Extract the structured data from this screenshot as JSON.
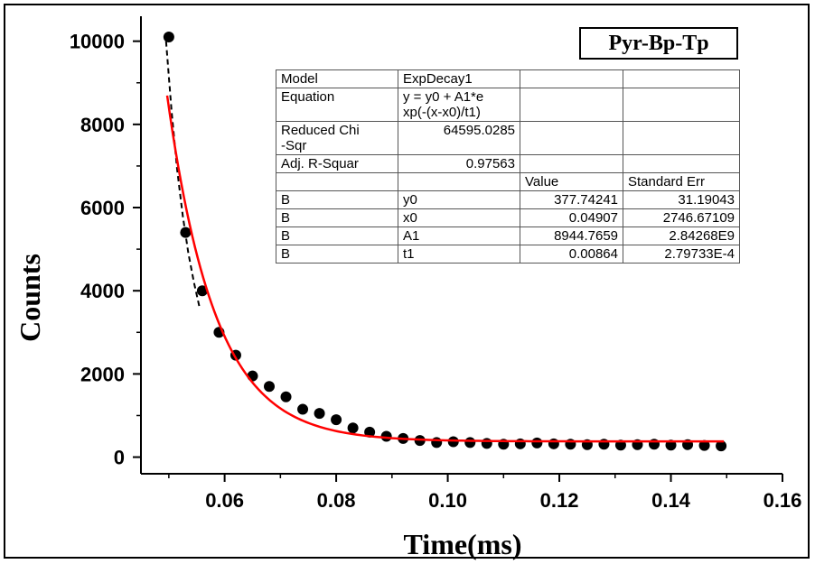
{
  "chart_data": {
    "type": "scatter",
    "title": "",
    "xlabel": "Time(ms)",
    "ylabel": "Counts",
    "xlim": [
      0.045,
      0.16
    ],
    "ylim": [
      -400,
      10600
    ],
    "x_ticks": [
      0.06,
      0.08,
      0.1,
      0.12,
      0.14,
      0.16
    ],
    "x_tick_labels": [
      "0.06",
      "0.08",
      "0.10",
      "0.12",
      "0.14",
      "0.16"
    ],
    "y_ticks": [
      0,
      2000,
      4000,
      6000,
      8000,
      10000
    ],
    "y_tick_labels": [
      "0",
      "2000",
      "4000",
      "6000",
      "8000",
      "10000"
    ],
    "legend": "Pyr-Bp-Tp",
    "legend_position": "top-right",
    "series": [
      {
        "marker": "circle",
        "color": "#000000",
        "x": [
          0.05,
          0.053,
          0.056,
          0.059,
          0.062,
          0.065,
          0.068,
          0.071,
          0.074,
          0.077,
          0.08,
          0.083,
          0.086,
          0.089,
          0.092,
          0.095,
          0.098,
          0.101,
          0.104,
          0.107,
          0.11,
          0.113,
          0.116,
          0.119,
          0.122,
          0.125,
          0.128,
          0.131,
          0.134,
          0.137,
          0.14,
          0.143,
          0.146,
          0.149
        ],
        "y": [
          10100,
          5400,
          4000,
          3000,
          2450,
          1950,
          1700,
          1450,
          1150,
          1050,
          900,
          700,
          600,
          500,
          450,
          400,
          350,
          370,
          350,
          330,
          310,
          320,
          340,
          320,
          310,
          300,
          310,
          290,
          300,
          310,
          290,
          300,
          280,
          270
        ]
      },
      {
        "type": "line",
        "style": "dashed",
        "color": "#000000",
        "x": [
          0.0495,
          0.0505,
          0.0515,
          0.0525,
          0.0535,
          0.0545,
          0.0555
        ],
        "y": [
          10000,
          8300,
          6900,
          5800,
          4900,
          4200,
          3600
        ]
      },
      {
        "type": "line",
        "name": "ExpDecay1 fit",
        "color": "#ff0000",
        "function": "y = y0 + A1*exp(-(x-x0)/t1)",
        "params": {
          "y0": 377.74241,
          "x0": 0.04907,
          "A1": 8944.7659,
          "t1": 0.00864
        },
        "x_range": [
          0.0497,
          0.1495
        ]
      }
    ]
  },
  "fit_table": {
    "rows": [
      [
        "Model",
        "ExpDecay1",
        "",
        ""
      ],
      [
        "Equation",
        "y = y0 + A1*e\nxp(-(x-x0)/t1)",
        "",
        ""
      ],
      [
        "Reduced Chi\n-Sqr",
        "64595.0285",
        "",
        ""
      ],
      [
        "Adj. R-Squar",
        "0.97563",
        "",
        ""
      ],
      [
        "",
        "",
        "Value",
        "Standard Err"
      ],
      [
        "B",
        "y0",
        "377.74241",
        "31.19043"
      ],
      [
        "B",
        "x0",
        "0.04907",
        "2746.67109"
      ],
      [
        "B",
        "A1",
        "8944.7659",
        "2.84268E9"
      ],
      [
        "B",
        "t1",
        "0.00864",
        "2.79733E-4"
      ]
    ]
  }
}
